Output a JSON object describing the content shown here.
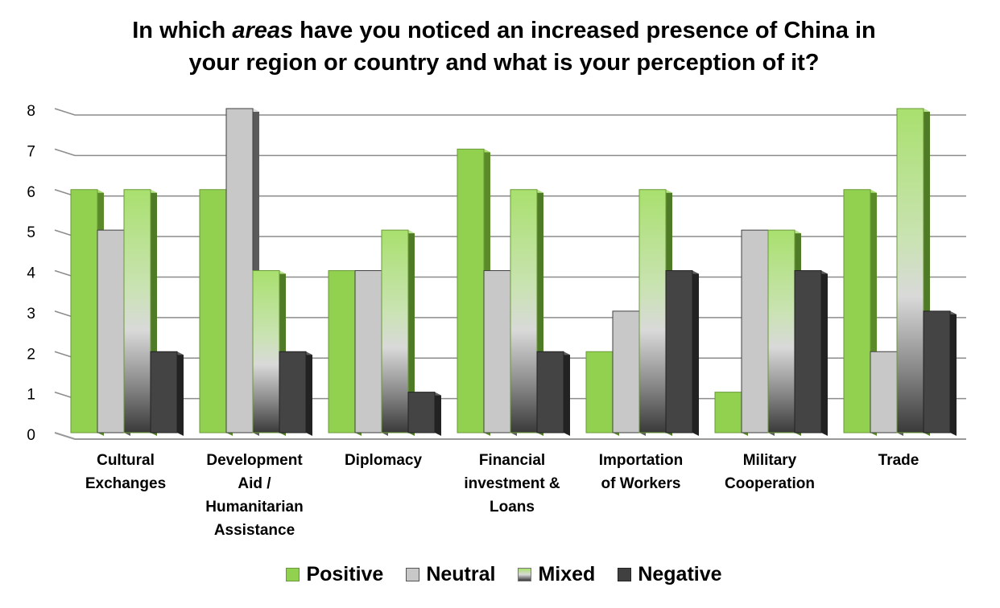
{
  "chart_data": {
    "type": "bar",
    "title_line1_pre": "In which ",
    "title_line1_em": "areas",
    "title_line1_post": " have you noticed an increased presence of China in",
    "title_line2": "your region or country and what is your perception of it?",
    "categories": [
      [
        "Cultural",
        "Exchanges"
      ],
      [
        "Development",
        "Aid /",
        "Humanitarian",
        "Assistance"
      ],
      [
        "Diplomacy"
      ],
      [
        "Financial",
        "investment &",
        "Loans"
      ],
      [
        "Importation",
        "of Workers"
      ],
      [
        "Military",
        "Cooperation"
      ],
      [
        "Trade"
      ]
    ],
    "series": [
      {
        "name": "Positive",
        "values": [
          6,
          6,
          4,
          7,
          2,
          1,
          6
        ],
        "color": "#92d050"
      },
      {
        "name": "Neutral",
        "values": [
          5,
          8,
          4,
          4,
          3,
          5,
          2
        ],
        "color": "#c8c8c8"
      },
      {
        "name": "Mixed",
        "values": [
          6,
          4,
          5,
          6,
          6,
          5,
          8
        ],
        "color": "#a9e06e"
      },
      {
        "name": "Negative",
        "values": [
          2,
          2,
          1,
          2,
          4,
          4,
          3
        ],
        "color": "#404040"
      }
    ],
    "ylim": [
      0,
      8
    ],
    "yticks": [
      0,
      1,
      2,
      3,
      4,
      5,
      6,
      7,
      8
    ],
    "grid": true,
    "legend_position": "bottom"
  },
  "legend": {
    "positive": "Positive",
    "neutral": "Neutral",
    "mixed": "Mixed",
    "negative": "Negative"
  }
}
